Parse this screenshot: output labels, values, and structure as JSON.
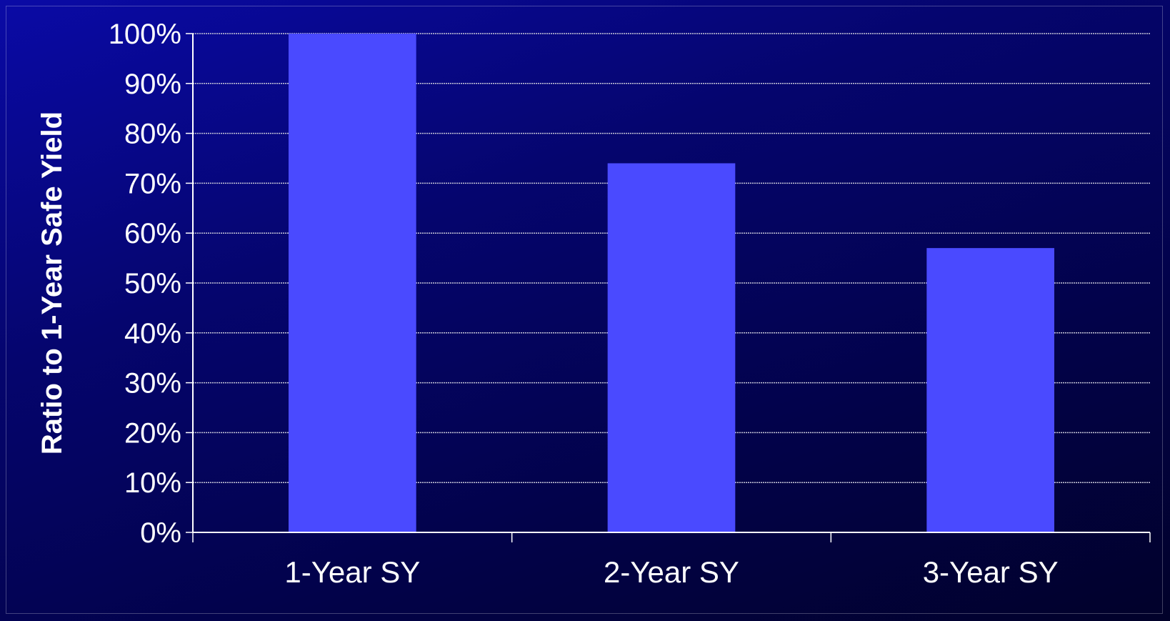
{
  "chart_data": {
    "type": "bar",
    "title": "",
    "xlabel": "",
    "ylabel": "Ratio to 1-Year Safe Yield",
    "categories": [
      "1-Year SY",
      "2-Year SY",
      "3-Year SY"
    ],
    "values": [
      100,
      74,
      57
    ],
    "unit": "%",
    "ylim": [
      0,
      100
    ],
    "yticks": [
      "0%",
      "10%",
      "20%",
      "30%",
      "40%",
      "50%",
      "60%",
      "70%",
      "80%",
      "90%",
      "100%"
    ],
    "grid": true,
    "legend": "none"
  },
  "colors": {
    "bar": "#4a4aff",
    "gridline": "#c8c8d8",
    "axis": "#ffffff",
    "text": "#ffffff"
  }
}
